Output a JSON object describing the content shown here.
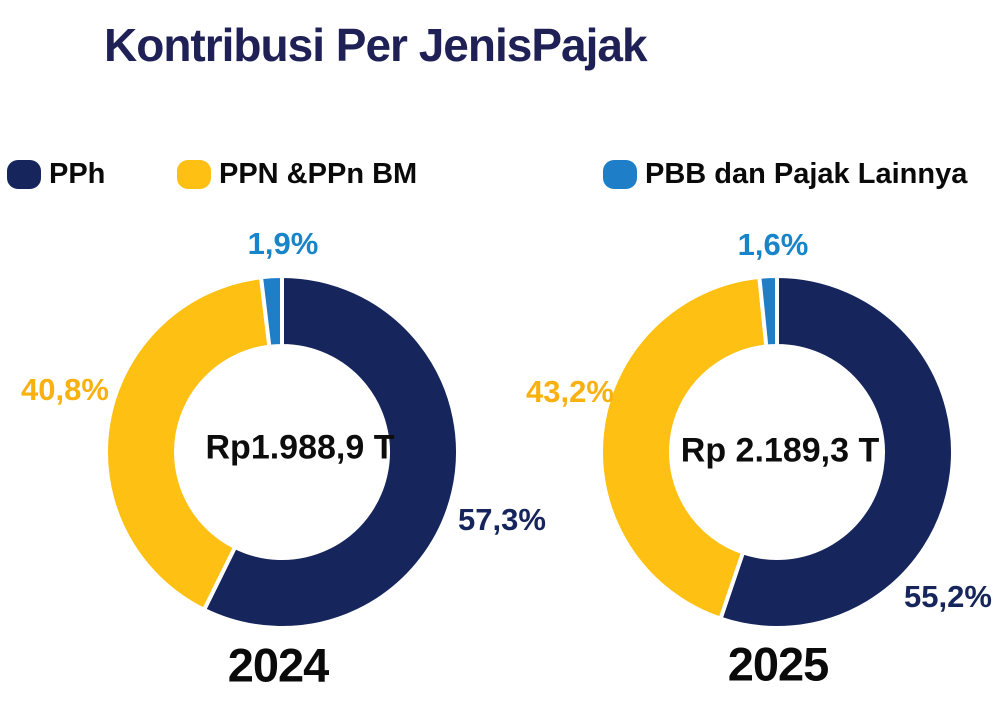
{
  "title": "Kontribusi Per JenisPajak",
  "title_color": "#1f2156",
  "legend": [
    {
      "label": "PPh",
      "color": "#16265C"
    },
    {
      "label": "PPN &PPn BM",
      "color": "#FDC013"
    },
    {
      "label": "PBB dan Pajak Lainnya",
      "color": "#1E7FC8"
    }
  ],
  "chart_data": [
    {
      "type": "donut",
      "year": "2024",
      "center_label": "Rp1.988,9 T",
      "slices": [
        {
          "name": "PPh",
          "value": 57.3,
          "label": "57,3%",
          "color": "#16265C",
          "label_color": "#16265C"
        },
        {
          "name": "PPN &PPn BM",
          "value": 40.8,
          "label": "40,8%",
          "color": "#FDC013",
          "label_color": "#F9B011"
        },
        {
          "name": "PBB dan Pajak Lainnya",
          "value": 1.9,
          "label": "1,9%",
          "color": "#1E7FC8",
          "label_color": "#1884C9"
        }
      ]
    },
    {
      "type": "donut",
      "year": "2025",
      "center_label": "Rp 2.189,3 T",
      "slices": [
        {
          "name": "PPh",
          "value": 55.2,
          "label": "55,2%",
          "color": "#16265C",
          "label_color": "#16265C"
        },
        {
          "name": "PPN &PPn BM",
          "value": 43.2,
          "label": "43,2%",
          "color": "#FDC013",
          "label_color": "#F9B011"
        },
        {
          "name": "PBB dan Pajak Lainnya",
          "value": 1.6,
          "label": "1,6%",
          "color": "#1E7FC8",
          "label_color": "#1884C9"
        }
      ]
    }
  ]
}
